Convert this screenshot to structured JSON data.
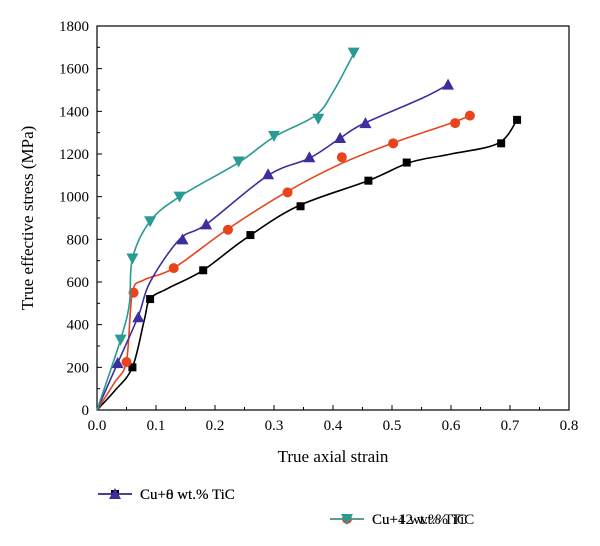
{
  "chart_data": {
    "type": "line",
    "title": "",
    "xlabel": "True axial strain",
    "ylabel": "True effective stress (MPa)",
    "xlim": [
      0.0,
      0.8
    ],
    "ylim": [
      0,
      1800
    ],
    "xticks": [
      "0.0",
      "0.1",
      "0.2",
      "0.3",
      "0.4",
      "0.5",
      "0.6",
      "0.7",
      "0.8"
    ],
    "yticks": [
      "0",
      "200",
      "400",
      "600",
      "800",
      "1000",
      "1200",
      "1400",
      "1600",
      "1800"
    ],
    "grid": false,
    "legend_position": "bottom",
    "series": [
      {
        "name": "Cu+0 wt.% TiC",
        "color": "#000000",
        "marker": "square",
        "curve": [
          [
            0,
            0
          ],
          [
            0.03,
            90
          ],
          [
            0.06,
            200
          ],
          [
            0.08,
            420
          ],
          [
            0.09,
            520
          ],
          [
            0.12,
            570
          ],
          [
            0.18,
            655
          ],
          [
            0.25,
            800
          ],
          [
            0.34,
            955
          ],
          [
            0.46,
            1075
          ],
          [
            0.53,
            1160
          ],
          [
            0.6,
            1200
          ],
          [
            0.68,
            1250
          ],
          [
            0.712,
            1360
          ]
        ],
        "markers": [
          [
            0.06,
            200
          ],
          [
            0.09,
            520
          ],
          [
            0.18,
            655
          ],
          [
            0.26,
            820
          ],
          [
            0.345,
            955
          ],
          [
            0.46,
            1075
          ],
          [
            0.525,
            1160
          ],
          [
            0.685,
            1250
          ],
          [
            0.712,
            1360
          ]
        ]
      },
      {
        "name": "Cu+4 wt.% TiC",
        "color": "#e8431c",
        "marker": "circle",
        "curve": [
          [
            0,
            0
          ],
          [
            0.03,
            130
          ],
          [
            0.05,
            230
          ],
          [
            0.06,
            550
          ],
          [
            0.08,
            610
          ],
          [
            0.13,
            665
          ],
          [
            0.22,
            845
          ],
          [
            0.32,
            1020
          ],
          [
            0.41,
            1150
          ],
          [
            0.5,
            1250
          ],
          [
            0.6,
            1345
          ],
          [
            0.632,
            1380
          ]
        ],
        "markers": [
          [
            0.05,
            225
          ],
          [
            0.062,
            550
          ],
          [
            0.13,
            665
          ],
          [
            0.222,
            845
          ],
          [
            0.323,
            1020
          ],
          [
            0.415,
            1185
          ],
          [
            0.502,
            1250
          ],
          [
            0.607,
            1345
          ],
          [
            0.632,
            1380
          ]
        ]
      },
      {
        "name": "Cu+8 wt.% TiC",
        "color": "#3a2f9c",
        "marker": "triangle-up",
        "curve": [
          [
            0,
            0
          ],
          [
            0.035,
            220
          ],
          [
            0.07,
            440
          ],
          [
            0.09,
            600
          ],
          [
            0.14,
            800
          ],
          [
            0.185,
            870
          ],
          [
            0.29,
            1100
          ],
          [
            0.36,
            1180
          ],
          [
            0.41,
            1270
          ],
          [
            0.45,
            1340
          ],
          [
            0.55,
            1460
          ],
          [
            0.595,
            1525
          ]
        ],
        "markers": [
          [
            0.035,
            220
          ],
          [
            0.07,
            435
          ],
          [
            0.145,
            800
          ],
          [
            0.185,
            870
          ],
          [
            0.29,
            1105
          ],
          [
            0.36,
            1185
          ],
          [
            0.412,
            1275
          ],
          [
            0.455,
            1345
          ],
          [
            0.595,
            1525
          ]
        ]
      },
      {
        "name": "Cu+12 wt.% TiC",
        "color": "#2a9a95",
        "marker": "triangle-down",
        "curve": [
          [
            0,
            0
          ],
          [
            0.04,
            330
          ],
          [
            0.055,
            500
          ],
          [
            0.06,
            710
          ],
          [
            0.09,
            885
          ],
          [
            0.14,
            1000
          ],
          [
            0.24,
            1160
          ],
          [
            0.3,
            1280
          ],
          [
            0.37,
            1380
          ],
          [
            0.4,
            1490
          ],
          [
            0.435,
            1670
          ]
        ],
        "markers": [
          [
            0.04,
            330
          ],
          [
            0.06,
            710
          ],
          [
            0.09,
            885
          ],
          [
            0.14,
            1000
          ],
          [
            0.24,
            1165
          ],
          [
            0.3,
            1285
          ],
          [
            0.375,
            1365
          ],
          [
            0.435,
            1675
          ]
        ]
      }
    ]
  }
}
